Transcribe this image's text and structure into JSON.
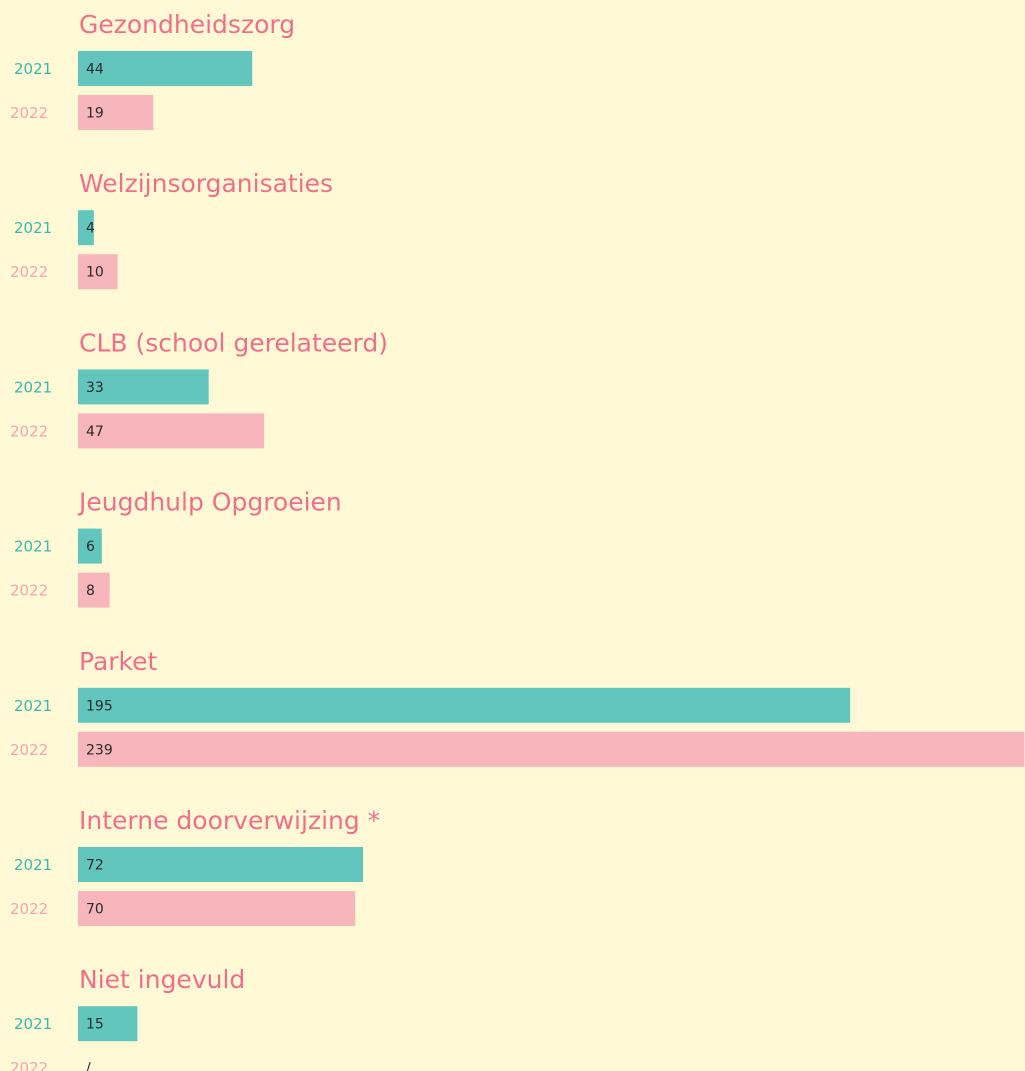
{
  "chart_data": {
    "type": "bar",
    "orientation": "horizontal",
    "categories": [
      "Gezondheidszorg",
      "Welzijnsorganisaties",
      "CLB (school gerelateerd)",
      "Jeugdhulp Opgroeien",
      "Parket",
      "Interne doorverwijzing *",
      "Niet ingevuld"
    ],
    "series": [
      {
        "name": "2021",
        "color": "#62c6bf",
        "values": [
          44,
          4,
          33,
          6,
          195,
          72,
          15
        ]
      },
      {
        "name": "2022",
        "color": "#f7b6bc",
        "values": [
          19,
          10,
          47,
          8,
          239,
          70,
          null
        ],
        "value_labels": [
          "19",
          "10",
          "47",
          "8",
          "239",
          "70",
          "/"
        ]
      }
    ]
  }
}
